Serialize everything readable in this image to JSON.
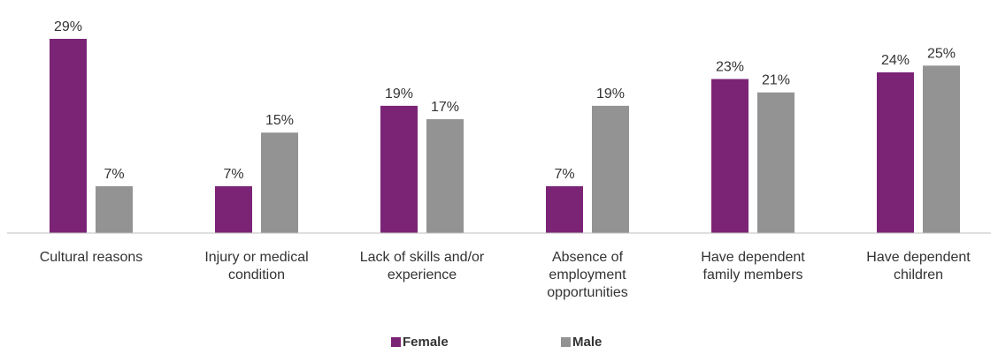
{
  "chart_data": {
    "type": "bar",
    "categories": [
      [
        "Cultural reasons"
      ],
      [
        "Injury or medical",
        "condition"
      ],
      [
        "Lack of skills and/or",
        "experience"
      ],
      [
        "Absence of",
        "employment",
        "opportunities"
      ],
      [
        "Have dependent",
        "family members"
      ],
      [
        "Have dependent",
        "children"
      ]
    ],
    "series": [
      {
        "name": "Female",
        "color": "#7b2476",
        "values": [
          29,
          7,
          19,
          7,
          23,
          24
        ],
        "labels": [
          "29%",
          "7%",
          "19%",
          "7%",
          "23%",
          "24%"
        ]
      },
      {
        "name": "Male",
        "color": "#939393",
        "values": [
          7,
          15,
          17,
          19,
          21,
          25
        ],
        "labels": [
          "7%",
          "15%",
          "17%",
          "19%",
          "21%",
          "25%"
        ]
      }
    ],
    "title": "",
    "xlabel": "",
    "ylabel": "",
    "ylim": [
      0,
      29
    ],
    "grid": false,
    "legend_position": "bottom"
  }
}
